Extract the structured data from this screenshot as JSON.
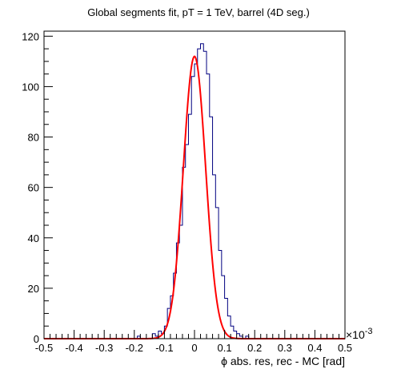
{
  "chart_data": {
    "type": "histogram",
    "title": "Global segments fit, pT = 1 TeV, barrel (4D seg.)",
    "xlabel": "ϕ abs. res, rec - MC [rad]",
    "ylabel": "",
    "x_multiplier_label": "×10",
    "x_multiplier_exponent": "-3",
    "xlim": [
      -0.5,
      0.5
    ],
    "ylim": [
      0,
      122
    ],
    "x_ticks": [
      -0.5,
      -0.4,
      -0.3,
      -0.2,
      -0.1,
      0,
      0.1,
      0.2,
      0.3,
      0.4,
      0.5
    ],
    "x_tick_labels": [
      "-0.5",
      "-0.4",
      "-0.3",
      "-0.2",
      "-0.1",
      "0",
      "0.1",
      "0.2",
      "0.3",
      "0.4",
      "0.5"
    ],
    "y_ticks": [
      0,
      20,
      40,
      60,
      80,
      100,
      120
    ],
    "y_tick_labels": [
      "0",
      "20",
      "40",
      "60",
      "80",
      "100",
      "120"
    ],
    "bin_width": 0.01,
    "bins_x_start": -0.5,
    "bin_counts": [
      0,
      0,
      0,
      0,
      0,
      0,
      0,
      0,
      0,
      0,
      0,
      0,
      0,
      0,
      0,
      0,
      0,
      0,
      0,
      0,
      0,
      0,
      0,
      0,
      0,
      0,
      0,
      0,
      0,
      0,
      0,
      1,
      0,
      0,
      0,
      0,
      2,
      1,
      3,
      2,
      5,
      12,
      17,
      26,
      38,
      45,
      68,
      77,
      89,
      104,
      109,
      115,
      117,
      114,
      105,
      88,
      65,
      52,
      35,
      25,
      16,
      9,
      5,
      3,
      2,
      1,
      0,
      1,
      0,
      0,
      0,
      0,
      0,
      0,
      0,
      0,
      0,
      0,
      0,
      0,
      0,
      0,
      0,
      0,
      0,
      0,
      0,
      0,
      0,
      0,
      0,
      0,
      0,
      0,
      0,
      0,
      0,
      0,
      0,
      0
    ],
    "series": [
      {
        "type": "histogram",
        "color": "#000080"
      },
      {
        "type": "gaussian-fit",
        "color": "#ff0000",
        "amplitude": 112,
        "mean": 0.0,
        "sigma": 0.037
      }
    ],
    "grid": false,
    "legend": "none"
  }
}
